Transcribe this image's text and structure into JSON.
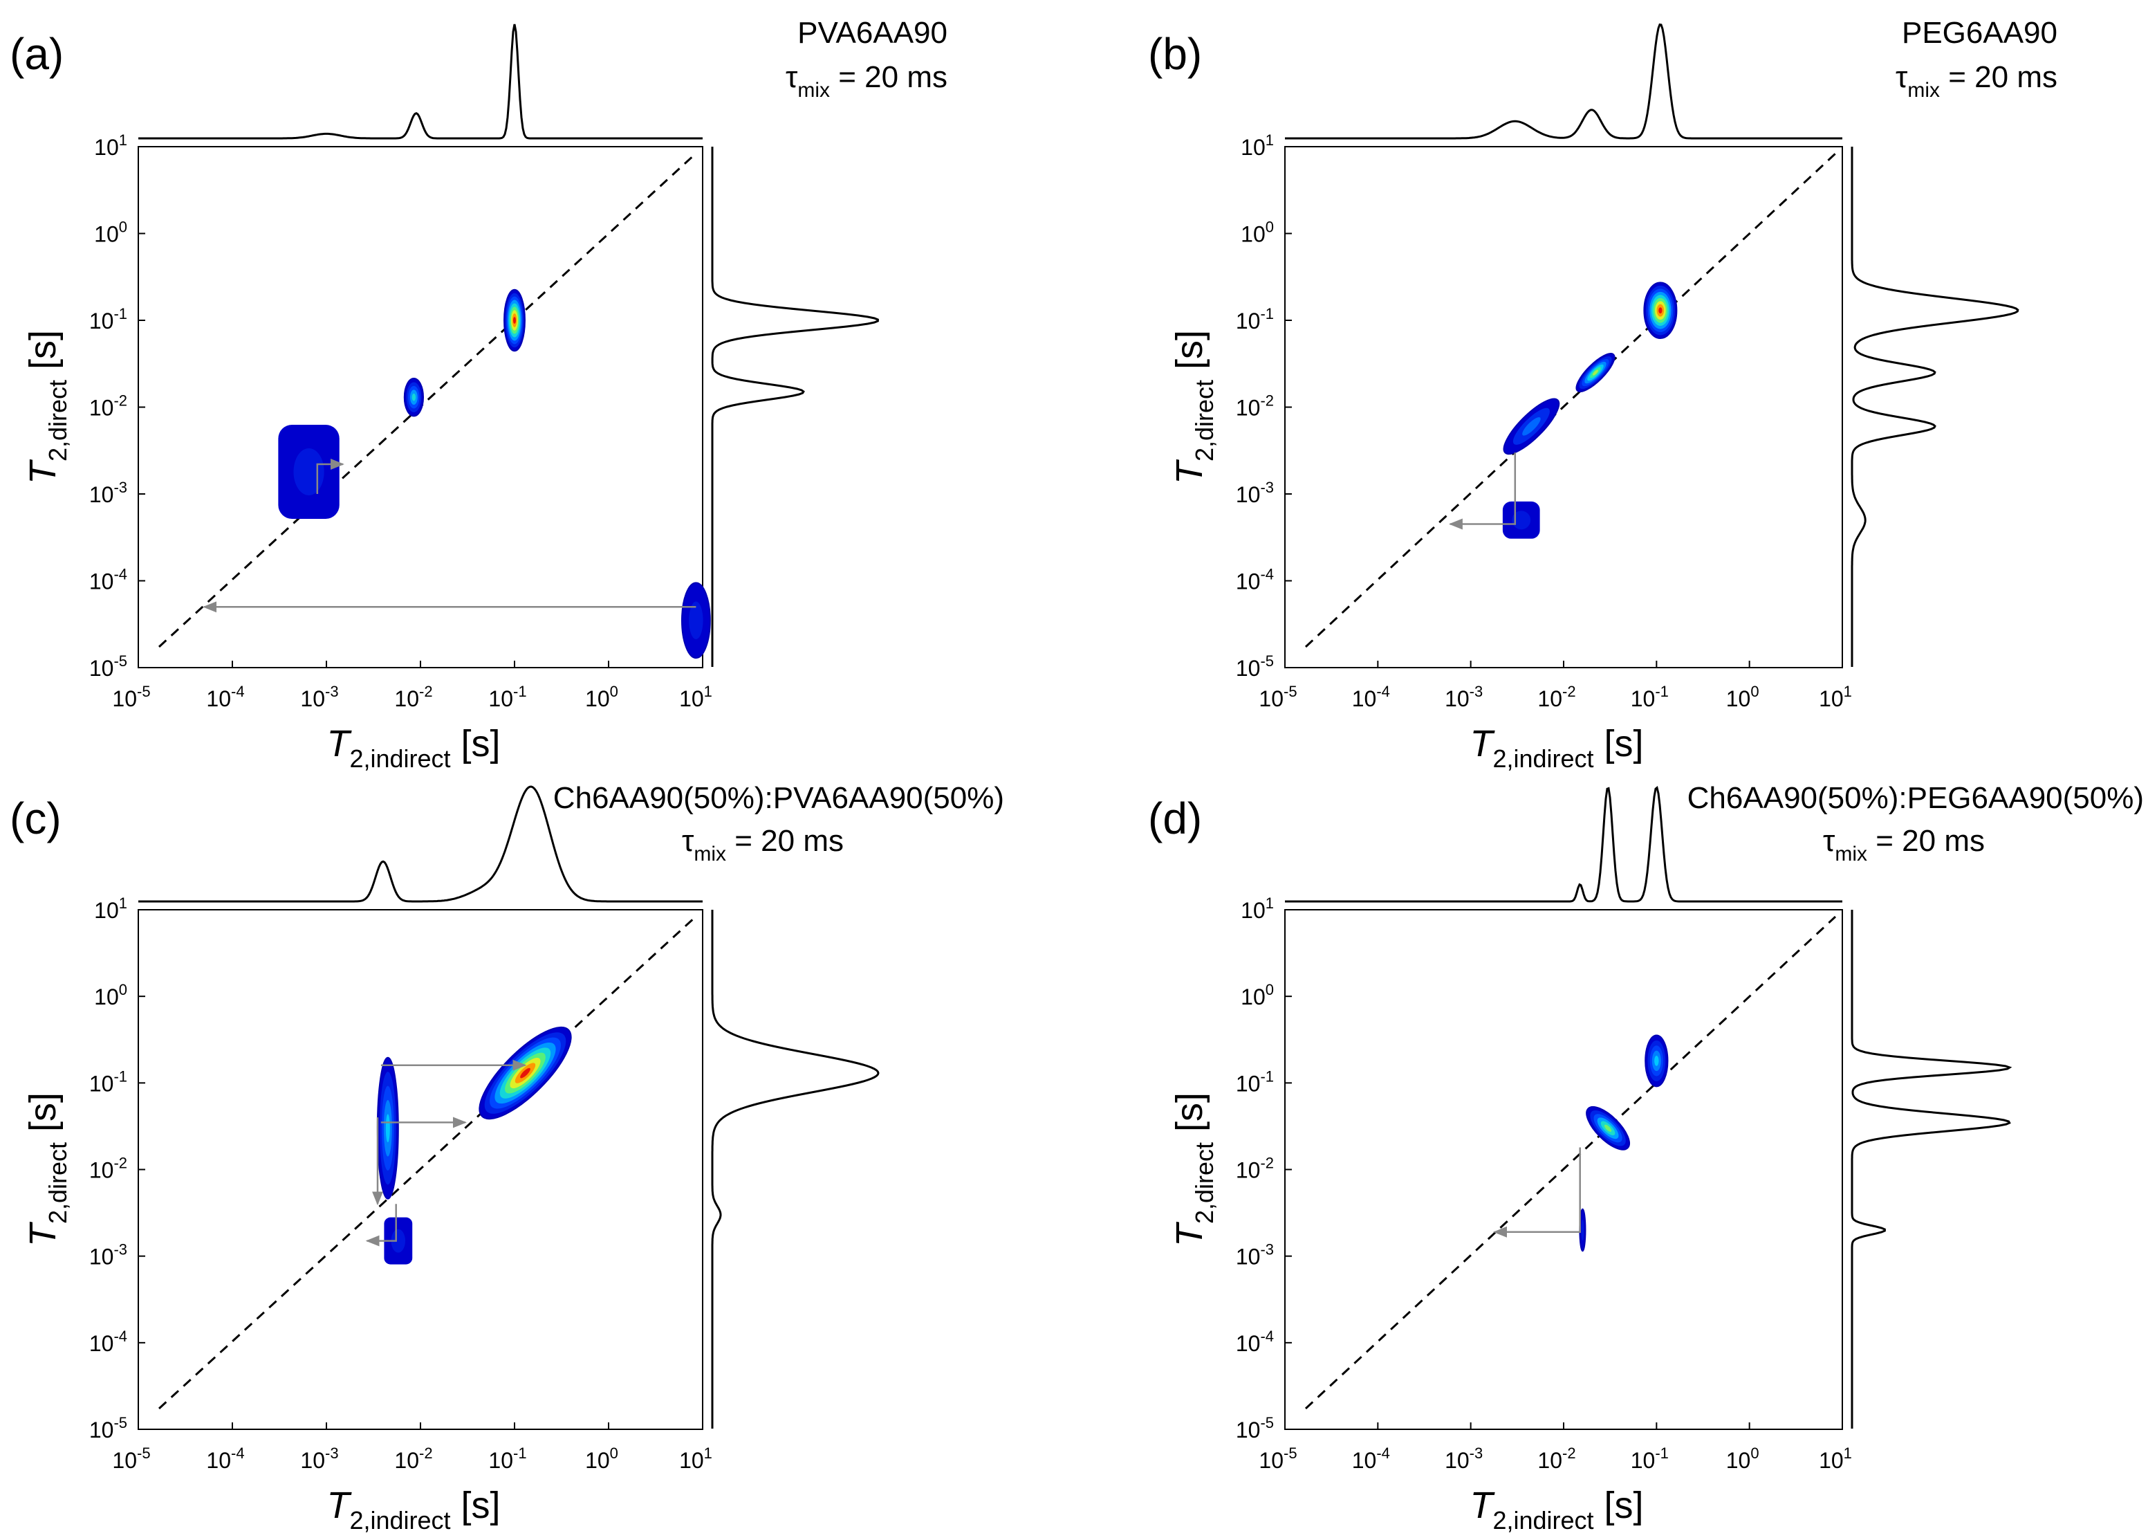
{
  "figure": {
    "axis_tick_base": "10",
    "x_label": {
      "main": "T",
      "sub": "2,indirect",
      "unit": "[s]"
    },
    "y_label": {
      "main": "T",
      "sub": "2,direct",
      "unit": "[s]"
    },
    "mix_label": {
      "symbol": "τ",
      "sub": "mix",
      "value": "= 20 ms"
    }
  },
  "chart_data": [
    {
      "type": "heatmap",
      "panel": "(a)",
      "sample": "PVA6AA90",
      "mixing_time_ms": 20,
      "x_axis": {
        "label": "T2,indirect [s]",
        "scale": "log10",
        "lim": [
          1e-05,
          10
        ],
        "tick_exponents": [
          -5,
          -4,
          -3,
          -2,
          -1,
          0,
          1
        ]
      },
      "y_axis": {
        "label": "T2,direct [s]",
        "scale": "log10",
        "lim": [
          1e-05,
          10
        ],
        "tick_exponents": [
          -5,
          -4,
          -3,
          -2,
          -1,
          0,
          1
        ]
      },
      "diagonal": "dashed",
      "peaks": [
        {
          "t2_indirect": 0.00065,
          "t2_direct": 0.0018,
          "intensity": 0.08,
          "kind": "blob",
          "span_decades": [
            0.65,
            1.0
          ]
        },
        {
          "t2_indirect": 0.0085,
          "t2_direct": 0.013,
          "intensity": 0.5,
          "kind": "ellipse",
          "span_decades": [
            0.2,
            0.4
          ]
        },
        {
          "t2_indirect": 0.1,
          "t2_direct": 0.1,
          "intensity": 1.0,
          "kind": "ellipse",
          "span_decades": [
            0.22,
            0.65
          ]
        },
        {
          "t2_indirect": 8.5,
          "t2_direct": 3.5e-05,
          "intensity": 0.08,
          "kind": "edge",
          "span_decades": [
            0.3,
            0.8
          ]
        }
      ],
      "exchange_arrows": [
        {
          "path": [
            [
              8.5,
              5e-05
            ],
            [
              5e-05,
              5e-05
            ]
          ]
        },
        {
          "path": [
            [
              0.0008,
              0.001
            ],
            [
              0.0008,
              0.0022
            ],
            [
              0.0015,
              0.0022
            ]
          ]
        }
      ],
      "top_projection": [
        {
          "x": 0.001,
          "h": 0.04,
          "w": 0.15
        },
        {
          "x": 0.009,
          "h": 0.22,
          "w": 0.06
        },
        {
          "x": 0.1,
          "h": 1.0,
          "w": 0.04
        }
      ],
      "right_projection": [
        {
          "y": 0.1,
          "h": 1.0,
          "w": 0.11
        },
        {
          "y": 0.015,
          "h": 0.55,
          "w": 0.09
        }
      ]
    },
    {
      "type": "heatmap",
      "panel": "(b)",
      "sample": "PEG6AA90",
      "mixing_time_ms": 20,
      "x_axis": {
        "label": "T2,indirect [s]",
        "scale": "log10",
        "lim": [
          1e-05,
          10
        ],
        "tick_exponents": [
          -5,
          -4,
          -3,
          -2,
          -1,
          0,
          1
        ]
      },
      "y_axis": {
        "label": "T2,direct [s]",
        "scale": "log10",
        "lim": [
          1e-05,
          10
        ],
        "tick_exponents": [
          -5,
          -4,
          -3,
          -2,
          -1,
          0,
          1
        ]
      },
      "diagonal": "dashed",
      "peaks": [
        {
          "t2_indirect": 0.0035,
          "t2_direct": 0.0005,
          "intensity": 0.08,
          "kind": "blob",
          "span_decades": [
            0.4,
            0.4
          ]
        },
        {
          "t2_indirect": 0.0045,
          "t2_direct": 0.006,
          "intensity": 0.3,
          "kind": "tilted",
          "span_decades": [
            0.8,
            0.25
          ]
        },
        {
          "t2_indirect": 0.022,
          "t2_direct": 0.025,
          "intensity": 0.7,
          "kind": "tilted",
          "span_decades": [
            0.55,
            0.18
          ]
        },
        {
          "t2_indirect": 0.11,
          "t2_direct": 0.13,
          "intensity": 1.0,
          "kind": "ellipse",
          "span_decades": [
            0.35,
            0.6
          ]
        }
      ],
      "exchange_arrows": [
        {
          "path": [
            [
              0.003,
              0.003
            ],
            [
              0.003,
              0.00045
            ],
            [
              0.0006,
              0.00045
            ]
          ]
        }
      ],
      "top_projection": [
        {
          "x": 0.003,
          "h": 0.15,
          "w": 0.18
        },
        {
          "x": 0.02,
          "h": 0.25,
          "w": 0.1
        },
        {
          "x": 0.11,
          "h": 1.0,
          "w": 0.08
        }
      ],
      "right_projection": [
        {
          "y": 0.13,
          "h": 1.0,
          "w": 0.14
        },
        {
          "y": 0.025,
          "h": 0.5,
          "w": 0.1
        },
        {
          "y": 0.006,
          "h": 0.5,
          "w": 0.1
        },
        {
          "y": 0.0005,
          "h": 0.08,
          "w": 0.15
        }
      ]
    },
    {
      "type": "heatmap",
      "panel": "(c)",
      "sample": "Ch6AA90(50%):PVA6AA90(50%)",
      "mixing_time_ms": 20,
      "x_axis": {
        "label": "T2,indirect [s]",
        "scale": "log10",
        "lim": [
          1e-05,
          10
        ],
        "tick_exponents": [
          -5,
          -4,
          -3,
          -2,
          -1,
          0,
          1
        ]
      },
      "y_axis": {
        "label": "T2,direct [s]",
        "scale": "log10",
        "lim": [
          1e-05,
          10
        ],
        "tick_exponents": [
          -5,
          -4,
          -3,
          -2,
          -1,
          0,
          1
        ]
      },
      "diagonal": "dashed",
      "peaks": [
        {
          "t2_indirect": 0.0058,
          "t2_direct": 0.0015,
          "intensity": 0.08,
          "kind": "blob",
          "span_decades": [
            0.3,
            0.5
          ]
        },
        {
          "t2_indirect": 0.0045,
          "t2_direct": 0.03,
          "intensity": 0.45,
          "kind": "column",
          "span_decades": [
            0.22,
            1.5
          ]
        },
        {
          "t2_indirect": 0.13,
          "t2_direct": 0.13,
          "intensity": 1.0,
          "kind": "tilted",
          "span_decades": [
            1.3,
            0.45
          ]
        }
      ],
      "exchange_arrows": [
        {
          "path": [
            [
              0.0038,
              0.16
            ],
            [
              0.13,
              0.16
            ]
          ]
        },
        {
          "path": [
            [
              0.0038,
              0.035
            ],
            [
              0.03,
              0.035
            ]
          ]
        },
        {
          "path": [
            [
              0.0055,
              0.004
            ],
            [
              0.0055,
              0.0015
            ],
            [
              0.0027,
              0.0015
            ]
          ]
        },
        {
          "path": [
            [
              0.0035,
              0.04
            ],
            [
              0.0035,
              0.004
            ]
          ]
        }
      ],
      "top_projection": [
        {
          "x": 0.004,
          "h": 0.35,
          "w": 0.08
        },
        {
          "x": 0.05,
          "h": 0.1,
          "w": 0.2
        },
        {
          "x": 0.15,
          "h": 1.0,
          "w": 0.2
        }
      ],
      "right_projection": [
        {
          "y": 0.13,
          "h": 1.0,
          "w": 0.22
        },
        {
          "y": 0.003,
          "h": 0.05,
          "w": 0.1
        }
      ]
    },
    {
      "type": "heatmap",
      "panel": "(d)",
      "sample": "Ch6AA90(50%):PEG6AA90(50%)",
      "mixing_time_ms": 20,
      "x_axis": {
        "label": "T2,indirect [s]",
        "scale": "log10",
        "lim": [
          1e-05,
          10
        ],
        "tick_exponents": [
          -5,
          -4,
          -3,
          -2,
          -1,
          0,
          1
        ]
      },
      "y_axis": {
        "label": "T2,direct [s]",
        "scale": "log10",
        "lim": [
          1e-05,
          10
        ],
        "tick_exponents": [
          -5,
          -4,
          -3,
          -2,
          -1,
          0,
          1
        ]
      },
      "diagonal": "dashed",
      "peaks": [
        {
          "t2_indirect": 0.016,
          "t2_direct": 0.002,
          "intensity": 0.08,
          "kind": "column",
          "span_decades": [
            0.06,
            0.45
          ]
        },
        {
          "t2_indirect": 0.03,
          "t2_direct": 0.03,
          "intensity": 0.65,
          "kind": "tilted",
          "span_decades": [
            0.25,
            0.6
          ]
        },
        {
          "t2_indirect": 0.1,
          "t2_direct": 0.18,
          "intensity": 0.45,
          "kind": "ellipse",
          "span_decades": [
            0.24,
            0.55
          ]
        }
      ],
      "exchange_arrows": [
        {
          "path": [
            [
              0.015,
              0.018
            ],
            [
              0.015,
              0.0019
            ],
            [
              0.0018,
              0.0019
            ]
          ]
        }
      ],
      "top_projection": [
        {
          "x": 0.015,
          "h": 0.15,
          "w": 0.03
        },
        {
          "x": 0.03,
          "h": 1.0,
          "w": 0.05
        },
        {
          "x": 0.1,
          "h": 1.0,
          "w": 0.06
        }
      ],
      "right_projection": [
        {
          "y": 0.15,
          "h": 0.95,
          "w": 0.08
        },
        {
          "y": 0.035,
          "h": 0.95,
          "w": 0.1
        },
        {
          "y": 0.002,
          "h": 0.2,
          "w": 0.05
        }
      ]
    }
  ]
}
